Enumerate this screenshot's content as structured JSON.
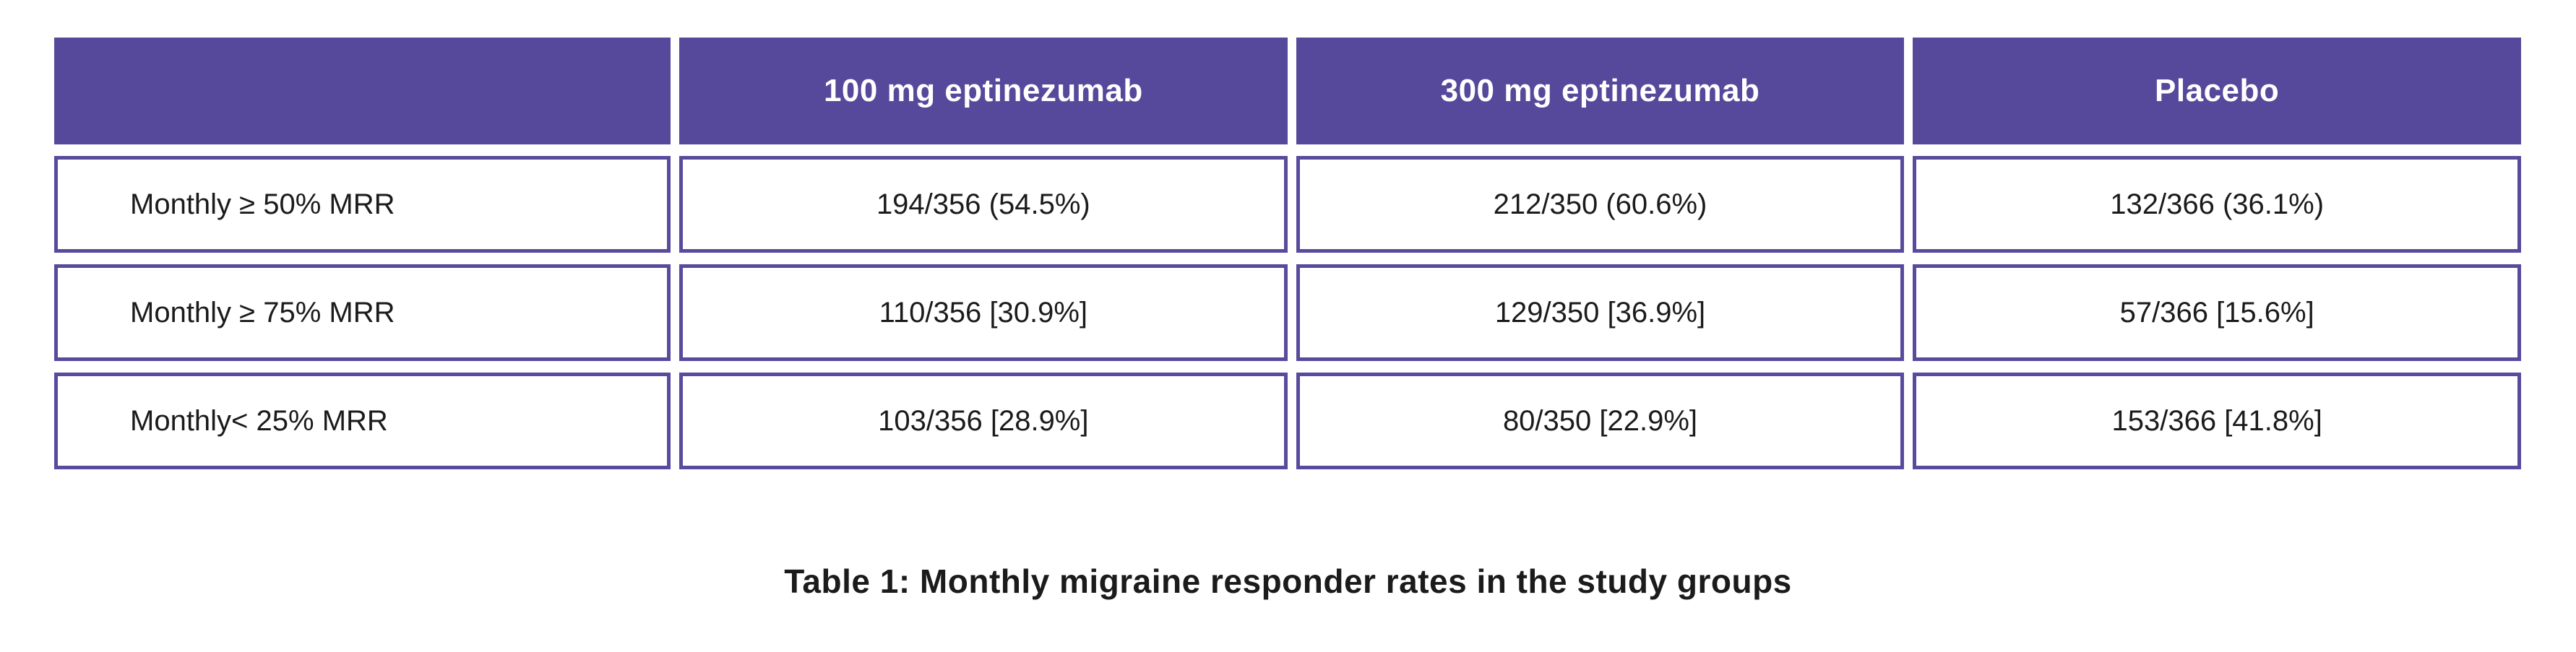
{
  "chart_data": {
    "type": "table",
    "title": "Table 1: Monthly migraine responder rates in the study groups",
    "columns": [
      "",
      "100 mg eptinezumab",
      "300 mg eptinezumab",
      "Placebo"
    ],
    "rows": [
      {
        "label": "Monthly ≥ 50% MRR",
        "cells": [
          "194/356 (54.5%)",
          "212/350 (60.6%)",
          "132/366 (36.1%)"
        ]
      },
      {
        "label": "Monthly ≥ 75% MRR",
        "cells": [
          "110/356 [30.9%]",
          "129/350 [36.9%]",
          "57/366 [15.6%]"
        ]
      },
      {
        "label": "Monthly< 25% MRR",
        "cells": [
          "103/356 [28.9%]",
          "80/350 [22.9%]",
          "153/366 [41.8%]"
        ]
      }
    ],
    "layout_hints": {
      "header_fill": true,
      "first_column_header_empty": true,
      "caption_position": "bottom-center"
    }
  },
  "colors": {
    "header_bg": "#56499B",
    "header_text": "#FFFFFF",
    "cell_border": "#584B9E",
    "cell_bg": "#FFFFFF",
    "body_text": "#1B1B1B",
    "page_bg": "#FFFFFF"
  }
}
